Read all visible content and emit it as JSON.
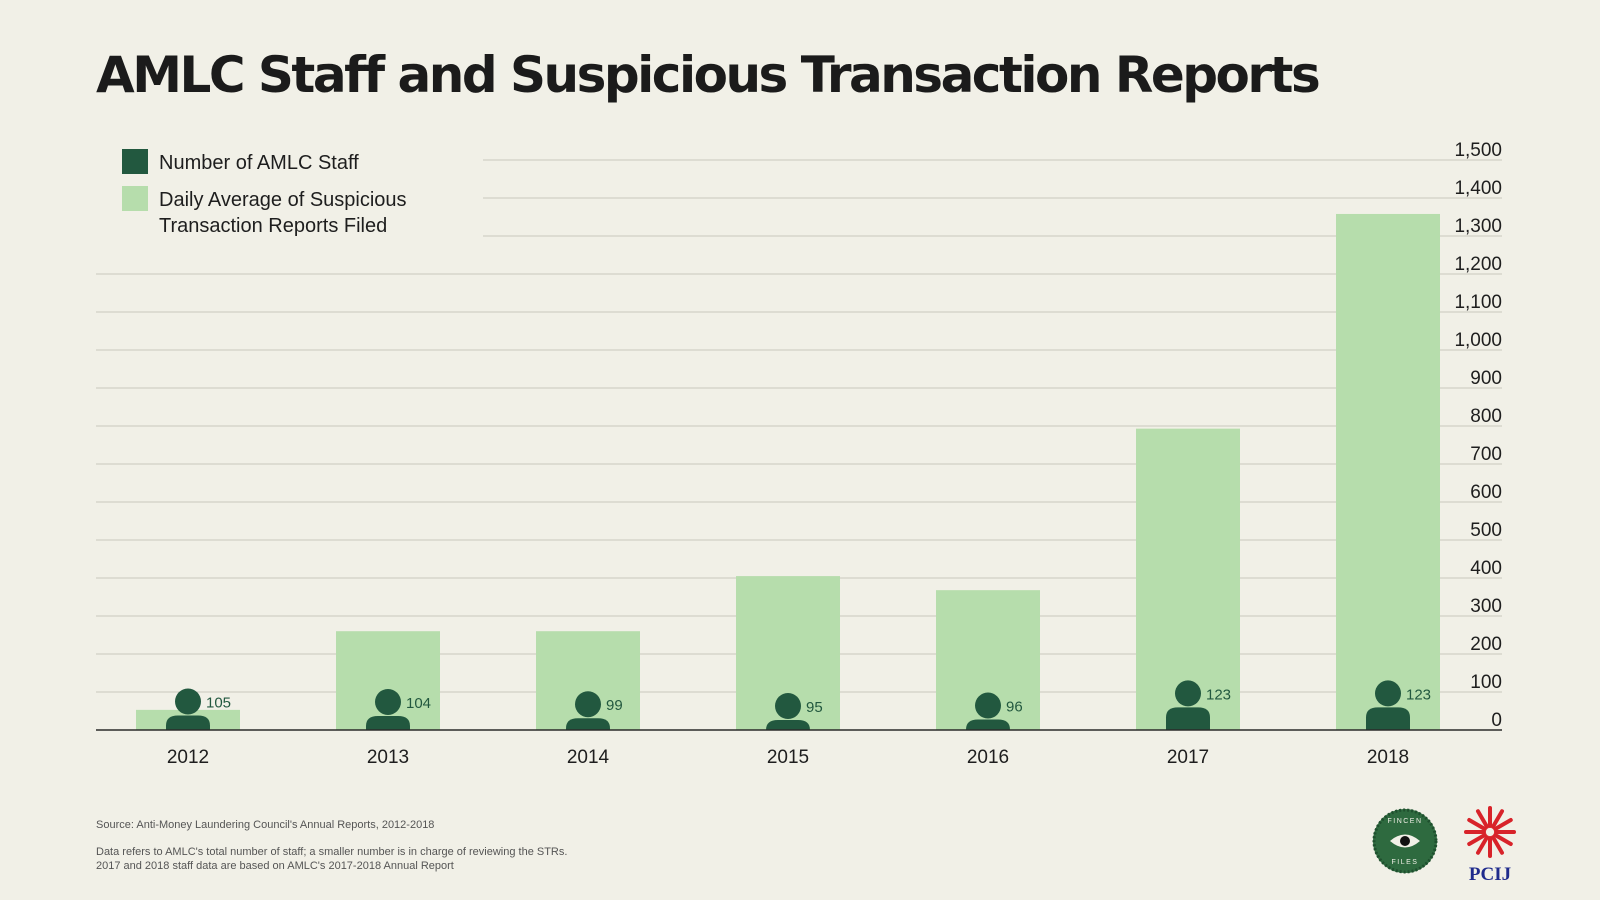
{
  "title": "AMLC Staff and Suspicious Transaction Reports",
  "colors": {
    "background": "#f1f0e7",
    "staff": "#22583f",
    "str_bars": "#b6ddac",
    "grid": "#c9c8bd",
    "axis": "#2a2a2a"
  },
  "legend": {
    "staff_label": "Number of AMLC Staff",
    "str_label_line1": "Daily Average of Suspicious",
    "str_label_line2": "Transaction Reports Filed"
  },
  "chart_data": {
    "type": "bar",
    "categories": [
      "2012",
      "2013",
      "2014",
      "2015",
      "2016",
      "2017",
      "2018"
    ],
    "series": [
      {
        "name": "Daily Average of Suspicious Transaction Reports Filed",
        "values": [
          53,
          260,
          260,
          405,
          368,
          793,
          1358
        ]
      },
      {
        "name": "Number of AMLC Staff",
        "values": [
          105,
          104,
          99,
          95,
          96,
          123,
          123
        ]
      }
    ],
    "yticks": [
      "0",
      "100",
      "200",
      "300",
      "400",
      "500",
      "600",
      "700",
      "800",
      "900",
      "1,000",
      "1,100",
      "1,200",
      "1,300",
      "1,400",
      "1,500"
    ],
    "ylim": [
      0,
      1500
    ],
    "grid": true,
    "legend_position": "top-left",
    "y_axis_position": "right"
  },
  "notes": {
    "source": "Source: Anti-Money Laundering Council's Annual Reports, 2012-2018",
    "note_line1": "Data refers to AMLC's total number of staff; a smaller number is in charge of reviewing the STRs.",
    "note_line2": "2017 and 2018 staff data are based on AMLC's 2017-2018 Annual Report"
  },
  "logos": {
    "fincen_top": "FINCEN",
    "fincen_bottom": "FILES",
    "pcij": "PCIJ"
  }
}
